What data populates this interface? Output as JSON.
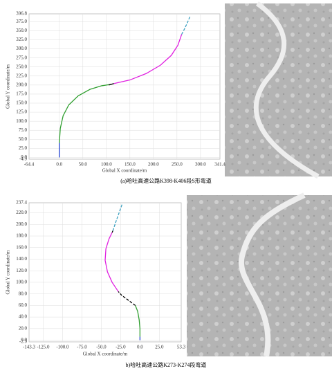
{
  "chart_data": [
    {
      "type": "line",
      "x_label": "Global X coordinate/m",
      "y_label": "Global Y coordinate/m",
      "caption": "(a)哈吐高速公路K398-K406段S形弯道",
      "xlim": [
        -64.4,
        341.4
      ],
      "ylim": [
        -4.9,
        396.8
      ],
      "grid": true,
      "xticks": [
        {
          "value": -64.4,
          "label": "-64.4"
        },
        {
          "value": 0,
          "label": "0.0"
        },
        {
          "value": 50,
          "label": "50.0"
        },
        {
          "value": 100,
          "label": "100.0"
        },
        {
          "value": 150,
          "label": "150.0"
        },
        {
          "value": 200,
          "label": "200.0"
        },
        {
          "value": 250,
          "label": "250.0"
        },
        {
          "value": 300,
          "label": "300.0"
        },
        {
          "value": 341.4,
          "label": "341.4"
        }
      ],
      "yticks": [
        {
          "value": -4.9,
          "label": "-4.9"
        },
        {
          "value": 0,
          "label": "0.0"
        },
        {
          "value": 25,
          "label": "25.0"
        },
        {
          "value": 50,
          "label": "50.0"
        },
        {
          "value": 75,
          "label": "75.0"
        },
        {
          "value": 100,
          "label": "100.0"
        },
        {
          "value": 125,
          "label": "125.0"
        },
        {
          "value": 150,
          "label": "150.0"
        },
        {
          "value": 175,
          "label": "175.0"
        },
        {
          "value": 200,
          "label": "200.0"
        },
        {
          "value": 225,
          "label": "225.0"
        },
        {
          "value": 250,
          "label": "250.0"
        },
        {
          "value": 275,
          "label": "275.0"
        },
        {
          "value": 300,
          "label": "300.0"
        },
        {
          "value": 325,
          "label": "325.0"
        },
        {
          "value": 350,
          "label": "350.0"
        },
        {
          "value": 375,
          "label": "375.0"
        },
        {
          "value": 396.8,
          "label": "396.8"
        }
      ],
      "series": [
        {
          "color": "#1f3fd0",
          "dash": false,
          "x": [
            0,
            0,
            0,
            0
          ],
          "values": [
            0,
            10,
            25,
            40
          ]
        },
        {
          "color": "#2e9e2e",
          "dash": false,
          "x": [
            0,
            2,
            8,
            20,
            40,
            65,
            90,
            110
          ],
          "values": [
            40,
            80,
            115,
            145,
            170,
            188,
            198,
            202
          ]
        },
        {
          "color": "#000000",
          "dash": false,
          "x": [
            105,
            110,
            116
          ],
          "values": [
            200,
            202,
            204
          ]
        },
        {
          "color": "#e020e0",
          "dash": false,
          "x": [
            116,
            150,
            185,
            215,
            238,
            252,
            260
          ],
          "values": [
            204,
            214,
            232,
            255,
            282,
            310,
            340
          ]
        },
        {
          "color": "#3aa0c0",
          "dash": true,
          "x": [
            260,
            266,
            272,
            278
          ],
          "values": [
            340,
            355,
            372,
            390
          ]
        }
      ]
    },
    {
      "type": "line",
      "x_label": "Global X coordinate/m",
      "y_label": "Global Y coordinate/m",
      "caption": "b)哈吐高速公路K273-K274段弯道",
      "xlim": [
        -143.3,
        53.3
      ],
      "ylim": [
        -2.9,
        237.4
      ],
      "grid": true,
      "xticks": [
        {
          "value": -143.3,
          "label": "-143.3"
        },
        {
          "value": -125,
          "label": "-125.0"
        },
        {
          "value": -100,
          "label": "-100.0"
        },
        {
          "value": -75,
          "label": "-75.0"
        },
        {
          "value": -50,
          "label": "-50.0"
        },
        {
          "value": -25,
          "label": "-25.0"
        },
        {
          "value": 0,
          "label": "0.0"
        },
        {
          "value": 25,
          "label": "25.0"
        },
        {
          "value": 53.3,
          "label": "53.3"
        }
      ],
      "yticks": [
        {
          "value": -2.9,
          "label": "-2.9"
        },
        {
          "value": 0,
          "label": "0.0"
        },
        {
          "value": 20,
          "label": "20.0"
        },
        {
          "value": 40,
          "label": "40.0"
        },
        {
          "value": 60,
          "label": "60.0"
        },
        {
          "value": 80,
          "label": "80.0"
        },
        {
          "value": 100,
          "label": "100.0"
        },
        {
          "value": 120,
          "label": "120.0"
        },
        {
          "value": 140,
          "label": "140.0"
        },
        {
          "value": 160,
          "label": "160.0"
        },
        {
          "value": 180,
          "label": "180.0"
        },
        {
          "value": 200,
          "label": "200.0"
        },
        {
          "value": 220,
          "label": "220.0"
        },
        {
          "value": 237.4,
          "label": "237.4"
        }
      ],
      "series": [
        {
          "color": "#1f3fd0",
          "dash": false,
          "x": [
            0,
            0,
            0
          ],
          "values": [
            0,
            3,
            6
          ]
        },
        {
          "color": "#2e9e2e",
          "dash": false,
          "x": [
            0,
            0,
            -1,
            -3,
            -6
          ],
          "values": [
            6,
            20,
            35,
            50,
            60
          ]
        },
        {
          "color": "#000000",
          "dash": true,
          "x": [
            -6,
            -12,
            -18,
            -24,
            -28
          ],
          "values": [
            60,
            66,
            72,
            78,
            84
          ]
        },
        {
          "color": "#e020e0",
          "dash": false,
          "x": [
            -28,
            -36,
            -42,
            -45,
            -44,
            -40,
            -36
          ],
          "values": [
            84,
            100,
            118,
            138,
            158,
            175,
            186
          ]
        },
        {
          "color": "#000000",
          "dash": false,
          "x": [
            -36,
            -35
          ],
          "values": [
            186,
            189
          ]
        },
        {
          "color": "#3aa0c0",
          "dash": true,
          "x": [
            -35,
            -31,
            -27,
            -23
          ],
          "values": [
            189,
            205,
            220,
            235
          ]
        }
      ]
    }
  ]
}
